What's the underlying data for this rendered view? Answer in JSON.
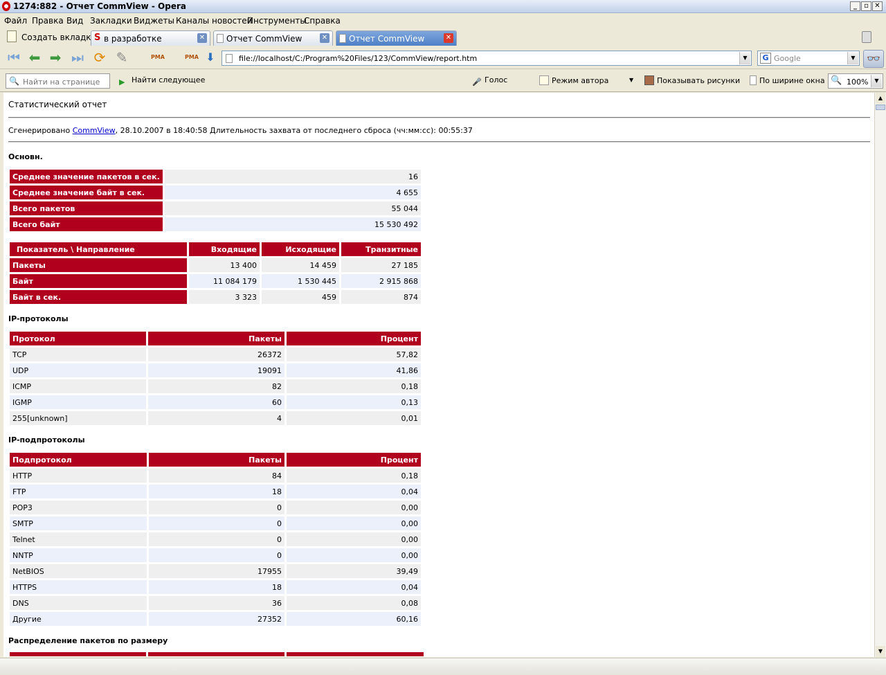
{
  "window": {
    "title": "1274:882 - Отчет CommView - Opera"
  },
  "menu": [
    "Файл",
    "Правка",
    "Вид",
    "Закладки",
    "Виджеты",
    "Каналы новостей",
    "Инструменты",
    "Справка"
  ],
  "tabs": {
    "new_tab": "Создать вкладку",
    "items": [
      {
        "label": "в разработке",
        "active": false
      },
      {
        "label": "Отчет CommView",
        "active": false
      },
      {
        "label": "Отчет CommView",
        "active": true
      }
    ]
  },
  "address": {
    "url": "file://localhost/C:/Program%20Files/123/CommView/report.htm"
  },
  "search": {
    "engine_icon": "G",
    "placeholder": "Google"
  },
  "nav_icons": {
    "pma": "PMA"
  },
  "findbar": {
    "placeholder": "Найти на странице",
    "find_next": "Найти следующее",
    "voice": "Голос",
    "author_mode": "Режим автора",
    "show_images": "Показывать рисунки",
    "fit_width": "По ширине окна",
    "zoom": "100%"
  },
  "report": {
    "title": "Статистический отчет",
    "generated_prefix": "Сгенерировано ",
    "generated_link": "CommView",
    "generated_suffix": ", 28.10.2007 в 18:40:58 Длительность захвата от последнего сброса (чч:мм:сс): 00:55:37",
    "basic": {
      "title": "Основн.",
      "rows": [
        {
          "label": "Среднее значение пакетов в сек.",
          "value": "16"
        },
        {
          "label": "Среднее значение байт в сек.",
          "value": "4 655"
        },
        {
          "label": "Всего пакетов",
          "value": "55 044"
        },
        {
          "label": "Всего байт",
          "value": "15 530 492"
        }
      ]
    },
    "direction": {
      "headers": [
        "Показатель \\ Направление",
        "Входящие",
        "Исходящие",
        "Транзитные"
      ],
      "rows": [
        {
          "label": "Пакеты",
          "values": [
            "13 400",
            "14 459",
            "27 185"
          ]
        },
        {
          "label": "Байт",
          "values": [
            "11 084 179",
            "1 530 445",
            "2 915 868"
          ]
        },
        {
          "label": "Байт в сек.",
          "values": [
            "3 323",
            "459",
            "874"
          ]
        }
      ]
    },
    "ip_protocols": {
      "title": "IP-протоколы",
      "headers": [
        "Протокол",
        "Пакеты",
        "Процент"
      ],
      "rows": [
        [
          "TCP",
          "26372",
          "57,82"
        ],
        [
          "UDP",
          "19091",
          "41,86"
        ],
        [
          "ICMP",
          "82",
          "0,18"
        ],
        [
          "IGMP",
          "60",
          "0,13"
        ],
        [
          "255[unknown]",
          "4",
          "0,01"
        ]
      ]
    },
    "ip_subprotocols": {
      "title": "IP-подпротоколы",
      "headers": [
        "Подпротокол",
        "Пакеты",
        "Процент"
      ],
      "rows": [
        [
          "HTTP",
          "84",
          "0,18"
        ],
        [
          "FTP",
          "18",
          "0,04"
        ],
        [
          "POP3",
          "0",
          "0,00"
        ],
        [
          "SMTP",
          "0",
          "0,00"
        ],
        [
          "Telnet",
          "0",
          "0,00"
        ],
        [
          "NNTP",
          "0",
          "0,00"
        ],
        [
          "NetBIOS",
          "17955",
          "39,49"
        ],
        [
          "HTTPS",
          "18",
          "0,04"
        ],
        [
          "DNS",
          "36",
          "0,08"
        ],
        [
          "Другие",
          "27352",
          "60,16"
        ]
      ]
    },
    "size_distribution": {
      "title": "Распределение пакетов по размеру"
    }
  }
}
